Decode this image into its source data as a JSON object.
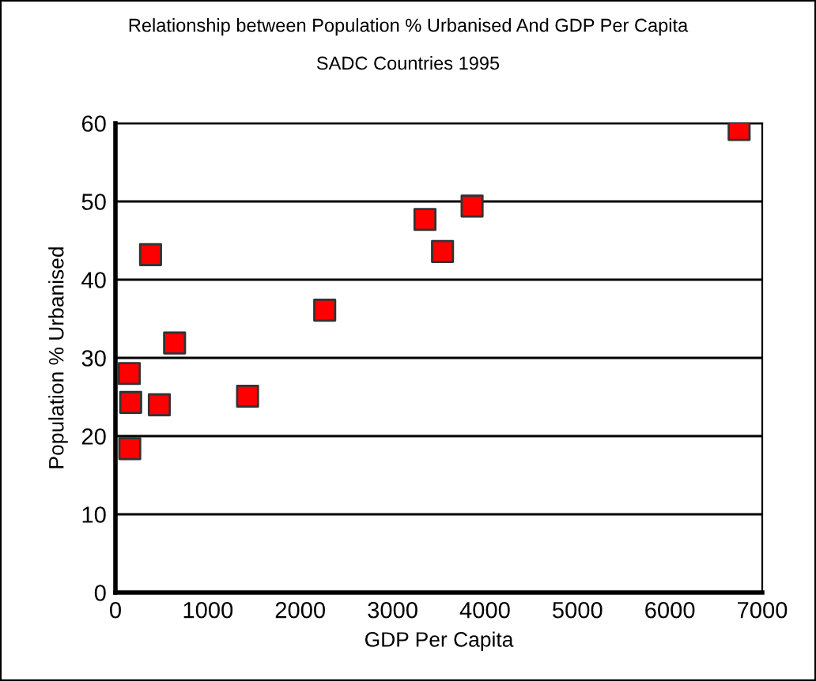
{
  "chart_data": {
    "type": "scatter",
    "title": "Relationship between Population % Urbanised And GDP Per Capita",
    "subtitle": "SADC Countries 1995",
    "xlabel": "GDP Per Capita",
    "ylabel": "Population % Urbanised",
    "x": [
      150,
      165,
      155,
      380,
      475,
      640,
      1430,
      2265,
      3350,
      3540,
      3860,
      6750
    ],
    "series": [
      {
        "color": "#ff0000",
        "values": [
          28.0,
          24.3,
          18.4,
          43.2,
          24.0,
          31.9,
          25.1,
          36.1,
          47.7,
          43.6,
          49.4,
          59.2
        ]
      }
    ],
    "xlim": [
      0,
      7000
    ],
    "xticks": [
      0,
      1000,
      2000,
      3000,
      4000,
      5000,
      6000,
      7000
    ],
    "ylim": [
      0,
      60
    ],
    "yticks": [
      0,
      10,
      20,
      30,
      40,
      50,
      60
    ],
    "grid": "y",
    "marker": "square"
  }
}
